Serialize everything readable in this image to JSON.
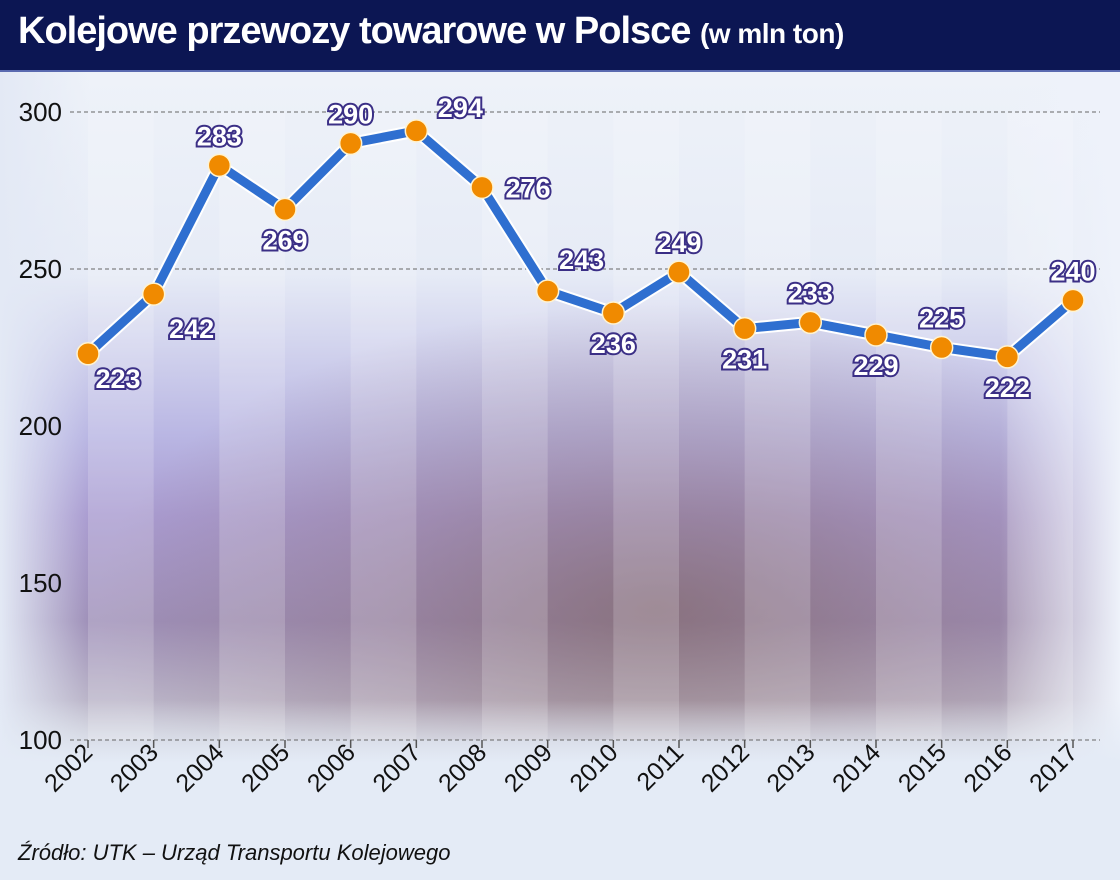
{
  "header": {
    "title": "Kolejowe przewozy towarowe w Polsce",
    "unit": "(w mln ton)"
  },
  "source": "Źródło: UTK – Urząd Transportu Kolejowego",
  "colors": {
    "header_bg": "#0c1653",
    "line": "#2f6fd0",
    "marker": "#f08a00",
    "label_outline": "#3b2f86"
  },
  "chart_data": {
    "type": "line",
    "title": "Kolejowe przewozy towarowe w Polsce (w mln ton)",
    "xlabel": "",
    "ylabel": "mln ton",
    "categories": [
      "2002",
      "2003",
      "2004",
      "2005",
      "2006",
      "2007",
      "2008",
      "2009",
      "2010",
      "2011",
      "2012",
      "2013",
      "2014",
      "2015",
      "2016",
      "2017"
    ],
    "series": [
      {
        "name": "Przewozy towarowe",
        "values": [
          223,
          242,
          283,
          269,
          290,
          294,
          276,
          243,
          236,
          249,
          231,
          233,
          229,
          225,
          222,
          240
        ]
      }
    ],
    "label_pos": [
      "below",
      "below",
      "above",
      "below",
      "above",
      "above",
      "right",
      "above",
      "below",
      "above",
      "below",
      "above",
      "below",
      "above",
      "below",
      "above"
    ],
    "yticks": [
      100,
      150,
      200,
      250,
      300
    ],
    "ylim": [
      100,
      300
    ],
    "grid": true,
    "legend": "none"
  }
}
